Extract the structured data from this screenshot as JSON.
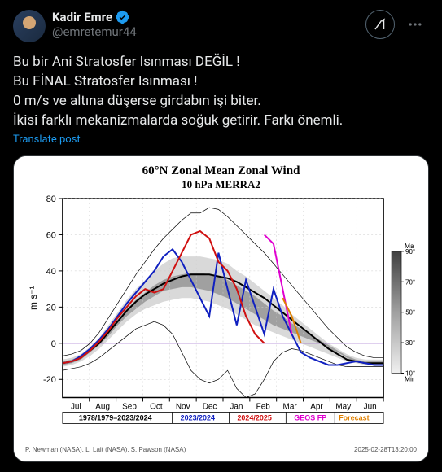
{
  "user": {
    "display_name": "Kadir Emre",
    "handle": "@emretemur44"
  },
  "tweet_text": "Bu bir Ani Stratosfer Isınması DEĞİL !\nBu FİNAL Stratosfer Isınması !\n0 m/s ve altına düşerse girdabın işi biter.\nİkisi farklı mekanizmalarda soğuk getirir. Farkı önemli.",
  "translate_label": "Translate post",
  "chart": {
    "title": "60°N Zonal Mean Zonal Wind",
    "subtitle": "10 hPa   MERRA2",
    "ylabel": "m s⁻¹",
    "ylim": [
      -30,
      80
    ],
    "yticks": [
      -20,
      0,
      20,
      40,
      60,
      80
    ],
    "xticks": [
      "Jul",
      "Aug",
      "Sep",
      "Oct",
      "Nov",
      "Dec",
      "Jan",
      "Feb",
      "Mar",
      "Apr",
      "May",
      "Jun"
    ],
    "legend": [
      {
        "label": "1978/1979–2023/2024",
        "color": "#000000"
      },
      {
        "label": "2023/2024",
        "color": "#1020c0"
      },
      {
        "label": "2024/2025",
        "color": "#d01010"
      },
      {
        "label": "GEOS FP",
        "color": "#e000d0"
      },
      {
        "label": "Forecast",
        "color": "#e08000"
      }
    ],
    "grid_color": "#cccccc",
    "zero_line_color": "#8040c0",
    "background": "#ffffff",
    "shade_light": "#d9d9d9",
    "shade_dark": "#a0a0a0",
    "series": {
      "climo_mean": [
        -11,
        -10,
        -8,
        -4,
        0,
        6,
        12,
        18,
        23,
        27,
        30,
        33,
        35,
        37,
        38,
        38,
        38,
        37,
        36,
        34,
        31,
        28,
        25,
        21,
        17,
        13,
        9,
        5,
        1,
        -3,
        -6,
        -9,
        -10,
        -11,
        -11,
        -11
      ],
      "env_max": [
        -7,
        -6,
        -4,
        0,
        6,
        14,
        22,
        30,
        38,
        45,
        52,
        58,
        63,
        68,
        72,
        72,
        75,
        74,
        70,
        65,
        60,
        55,
        50,
        44,
        38,
        32,
        26,
        20,
        14,
        8,
        3,
        -2,
        -5,
        -7,
        -8,
        -8
      ],
      "env_min": [
        -15,
        -14,
        -13,
        -11,
        -8,
        -4,
        0,
        4,
        8,
        10,
        12,
        10,
        5,
        -5,
        -15,
        -20,
        -22,
        -20,
        -15,
        -25,
        -30,
        -28,
        -20,
        -10,
        -5,
        -3,
        -4,
        -6,
        -8,
        -10,
        -12,
        -13,
        -13,
        -13,
        -13,
        -13
      ],
      "p70_hi": [
        -9,
        -8,
        -6,
        -2,
        3,
        10,
        17,
        24,
        30,
        35,
        40,
        44,
        47,
        48,
        48,
        48,
        47,
        46,
        44,
        40,
        37,
        33,
        29,
        25,
        21,
        16,
        12,
        8,
        4,
        0,
        -3,
        -6,
        -8,
        -9,
        -9,
        -9
      ],
      "p70_lo": [
        -13,
        -12,
        -10,
        -7,
        -3,
        2,
        7,
        12,
        16,
        19,
        21,
        23,
        24,
        25,
        25,
        24,
        23,
        21,
        19,
        16,
        13,
        10,
        8,
        6,
        4,
        2,
        0,
        -2,
        -4,
        -6,
        -8,
        -10,
        -11,
        -12,
        -12,
        -12
      ],
      "p30_hi": [
        -10,
        -9,
        -7,
        -3,
        1,
        7,
        13,
        19,
        24,
        28,
        32,
        35,
        37,
        38,
        39,
        39,
        38,
        37,
        35,
        32,
        29,
        26,
        22,
        18,
        15,
        11,
        8,
        5,
        2,
        -1,
        -4,
        -7,
        -9,
        -10,
        -10,
        -10
      ],
      "p30_lo": [
        -12,
        -11,
        -9,
        -5,
        -1,
        4,
        10,
        15,
        19,
        23,
        26,
        29,
        30,
        31,
        31,
        30,
        29,
        27,
        25,
        22,
        19,
        16,
        13,
        10,
        8,
        6,
        4,
        2,
        0,
        -3,
        -5,
        -8,
        -10,
        -11,
        -11,
        -11
      ],
      "s2023": [
        -11,
        -10,
        -7,
        -3,
        2,
        8,
        15,
        22,
        28,
        34,
        40,
        48,
        52,
        45,
        35,
        25,
        15,
        50,
        30,
        10,
        35,
        20,
        5,
        30,
        15,
        5,
        -5,
        -8,
        -10,
        -12,
        -12,
        -11,
        -10,
        -11,
        -12,
        -12
      ],
      "s2024": [
        -11,
        -10,
        -8,
        -4,
        1,
        7,
        14,
        20,
        26,
        30,
        28,
        30,
        40,
        50,
        60,
        62,
        58,
        45,
        40,
        30,
        15,
        5,
        0,
        0,
        0,
        0,
        0,
        0,
        0,
        0,
        0,
        0,
        0,
        0,
        0,
        0
      ],
      "geos": [
        0,
        0,
        0,
        0,
        0,
        0,
        0,
        0,
        0,
        0,
        0,
        0,
        0,
        0,
        0,
        0,
        0,
        0,
        0,
        0,
        0,
        0,
        60,
        55,
        30,
        5,
        0,
        0,
        0,
        0,
        0,
        0,
        0,
        0,
        0,
        0
      ],
      "fcst": [
        0,
        0,
        0,
        0,
        0,
        0,
        0,
        0,
        0,
        0,
        0,
        0,
        0,
        0,
        0,
        0,
        0,
        0,
        0,
        0,
        0,
        0,
        0,
        0,
        25,
        15,
        0,
        0,
        0,
        0,
        0,
        0,
        0,
        0,
        0,
        0
      ]
    },
    "side_bar": {
      "labels_top": "Ma",
      "ticks": [
        "90°",
        "70°",
        "50°",
        "30°",
        "10°"
      ],
      "label_bottom": "Mir"
    }
  },
  "credit_left": "P. Newman (NASA), L. Lait (NASA), S. Pawson (NASA)",
  "credit_right": "2025-02-28T13:20:00"
}
